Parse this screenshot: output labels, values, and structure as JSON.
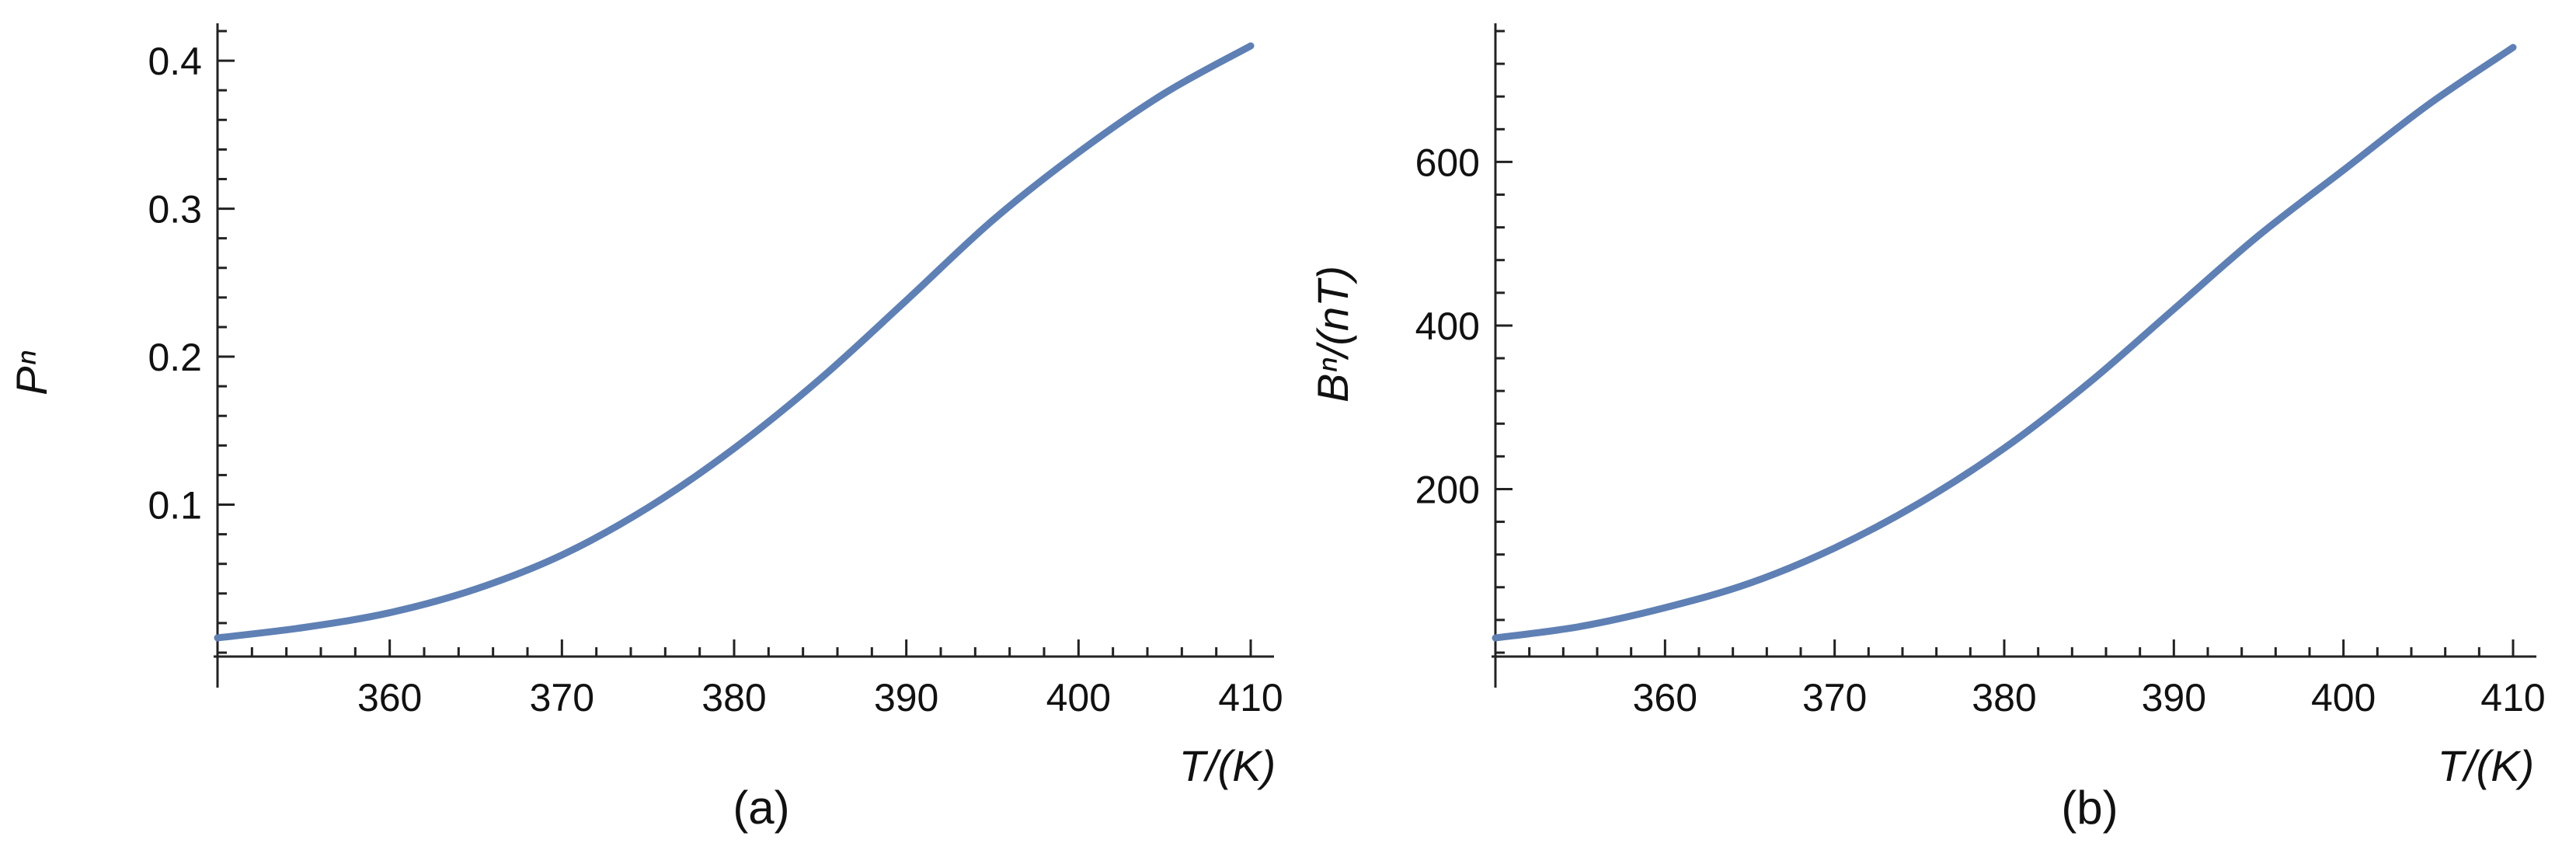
{
  "colors": {
    "series": "#5f80b4",
    "axis": "#222222",
    "background": "#ffffff"
  },
  "chart_data": [
    {
      "type": "line",
      "caption": "(a)",
      "xlabel": "T/(K)",
      "ylabel": "Pⁿ",
      "xlim": [
        350,
        410
      ],
      "ylim": [
        0,
        0.42
      ],
      "xticks": [
        360,
        370,
        380,
        390,
        400,
        410
      ],
      "xtick_labels": [
        "360",
        "370",
        "380",
        "390",
        "400",
        "410"
      ],
      "yticks": [
        0.1,
        0.2,
        0.3,
        0.4
      ],
      "ytick_labels": [
        "0.1",
        "0.2",
        "0.3",
        "0.4"
      ],
      "grid": false,
      "series": [
        {
          "x": [
            350,
            355,
            360,
            365,
            370,
            375,
            380,
            385,
            390,
            395,
            400,
            405,
            410
          ],
          "y": [
            0.01,
            0.017,
            0.027,
            0.043,
            0.066,
            0.098,
            0.138,
            0.185,
            0.238,
            0.292,
            0.338,
            0.378,
            0.41
          ]
        }
      ]
    },
    {
      "type": "line",
      "caption": "(b)",
      "xlabel": "T/(K)",
      "ylabel": "Bⁿ/(nT)",
      "xlim": [
        350,
        410
      ],
      "ylim": [
        0,
        760
      ],
      "xticks": [
        360,
        370,
        380,
        390,
        400,
        410
      ],
      "xtick_labels": [
        "360",
        "370",
        "380",
        "390",
        "400",
        "410"
      ],
      "yticks": [
        200,
        400,
        600
      ],
      "ytick_labels": [
        "200",
        "400",
        "600"
      ],
      "grid": false,
      "series": [
        {
          "x": [
            350,
            355,
            360,
            365,
            370,
            375,
            380,
            385,
            390,
            395,
            400,
            405,
            410
          ],
          "y": [
            18,
            32,
            55,
            85,
            128,
            183,
            250,
            330,
            420,
            510,
            590,
            670,
            740
          ]
        }
      ]
    }
  ]
}
